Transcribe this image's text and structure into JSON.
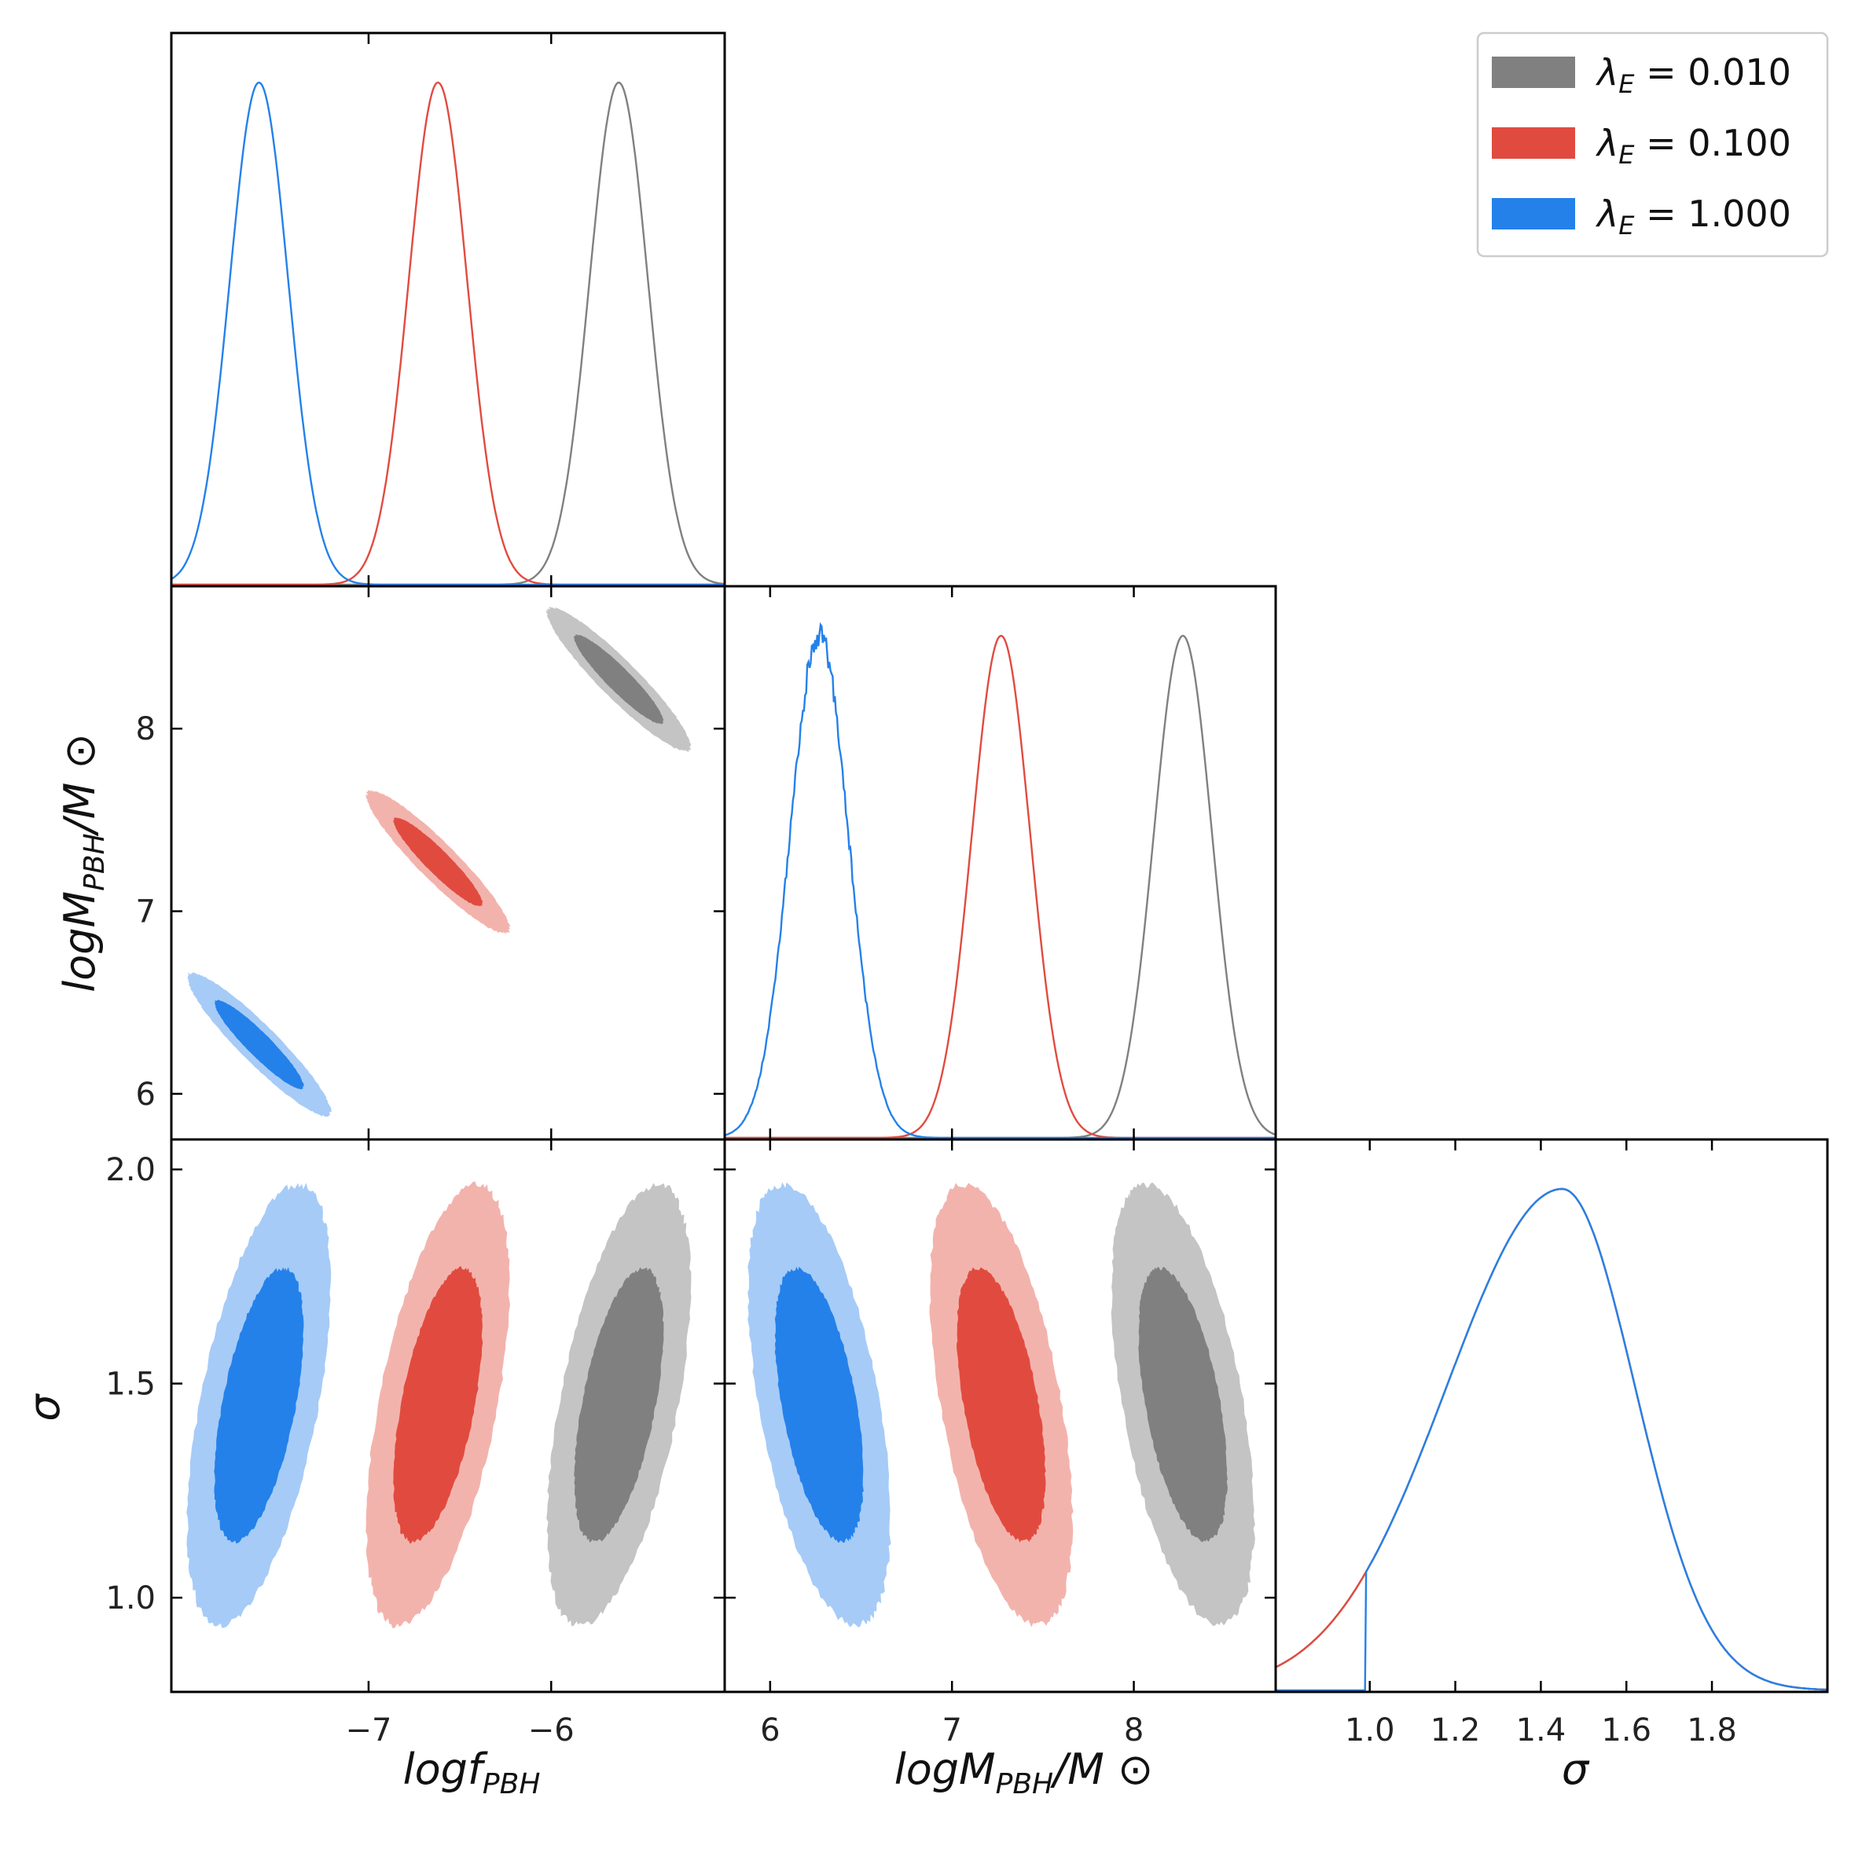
{
  "chart_data": {
    "type": "corner",
    "parameters": [
      {
        "id": "logf",
        "label_main": "logf",
        "label_sub": "PBH",
        "label_suffix": "",
        "range": [
          -8.08,
          -5.05
        ],
        "ticks": [
          -7,
          -6
        ],
        "tick_labels": [
          "−7",
          "−6"
        ]
      },
      {
        "id": "logM",
        "label_main": "logM",
        "label_sub": "PBH",
        "label_suffix": "/M ⊙",
        "range": [
          5.75,
          8.78
        ],
        "ticks": [
          6,
          7,
          8
        ],
        "tick_labels": [
          "6",
          "7",
          "8"
        ]
      },
      {
        "id": "sigma",
        "label_main": "σ",
        "label_sub": "",
        "label_suffix": "",
        "range": [
          0.78,
          2.07
        ],
        "ticks": [
          1.0,
          1.2,
          1.4,
          1.6,
          1.8
        ],
        "tick_labels": [
          "1.0",
          "1.2",
          "1.4",
          "1.6",
          "1.8"
        ],
        "y_ticks": [
          1.0,
          1.5,
          2.0
        ],
        "y_tick_labels": [
          "1.0",
          "1.5",
          "2.0"
        ]
      }
    ],
    "series": [
      {
        "name": "λE = 0.010",
        "legend_value": "= 0.010",
        "color": "#808080",
        "light_color": "#c4c4c4",
        "logf_mean": -5.63,
        "logf_sd": 0.16,
        "logM_mean": 8.27,
        "logM_sd": 0.16,
        "sigma_mean": 1.45,
        "sigma_sd": 0.21,
        "logf_logM_corr": -0.93,
        "sigma_logf_corr": 0.55,
        "sigma_logM_corr": -0.52
      },
      {
        "name": "λE = 0.100",
        "legend_value": "= 0.100",
        "color": "#e14b3f",
        "light_color": "#f3b3ad",
        "logf_mean": -6.62,
        "logf_sd": 0.16,
        "logM_mean": 7.27,
        "logM_sd": 0.16,
        "sigma_mean": 1.45,
        "sigma_sd": 0.21,
        "logf_logM_corr": -0.93,
        "sigma_logf_corr": 0.55,
        "sigma_logM_corr": -0.52
      },
      {
        "name": "λE = 1.000",
        "legend_value": "= 1.000",
        "color": "#2481ea",
        "light_color": "#a6cbf7",
        "logf_mean": -7.6,
        "logf_sd": 0.16,
        "logM_mean": 6.27,
        "logM_sd": 0.16,
        "sigma_mean": 1.45,
        "sigma_sd": 0.21,
        "logf_logM_corr": -0.93,
        "sigma_logf_corr": 0.55,
        "sigma_logM_corr": -0.52
      }
    ],
    "legend": {
      "symbol": "λ",
      "subscript": "E",
      "placement": "top-right"
    },
    "x_labels": [
      "logf PBH",
      "logM PBH / M ⊙",
      "σ"
    ],
    "y_labels": [
      "logM PBH / M ⊙",
      "σ"
    ]
  }
}
